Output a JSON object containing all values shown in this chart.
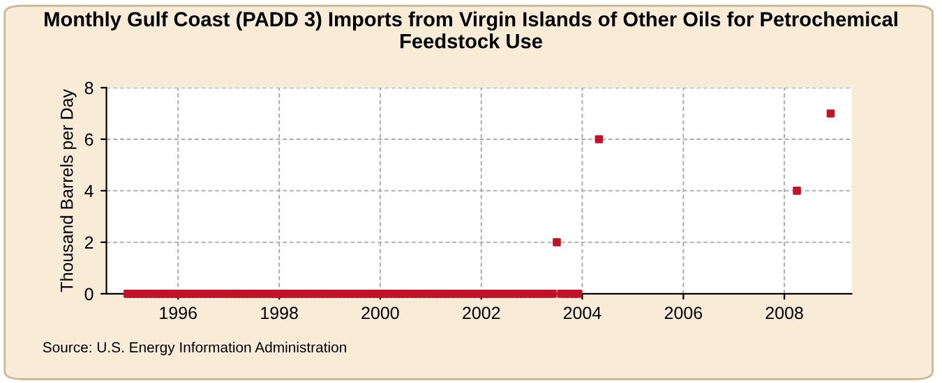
{
  "chart_data": {
    "type": "scatter",
    "title": "Monthly Gulf Coast (PADD 3) Imports from Virgin Islands of Other Oils for Petrochemical Feedstock Use",
    "ylabel": "Thousand Barrels per Day",
    "annotations": [
      "Source: U.S. Energy Information Administration"
    ],
    "x": [
      "1995-01",
      "1995-02",
      "1995-03",
      "1995-04",
      "1995-05",
      "1995-06",
      "1995-07",
      "1995-08",
      "1995-09",
      "1995-10",
      "1995-11",
      "1995-12",
      "1996-01",
      "1996-02",
      "1996-03",
      "1996-04",
      "1996-05",
      "1996-06",
      "1996-07",
      "1996-08",
      "1996-09",
      "1996-10",
      "1996-11",
      "1996-12",
      "1997-01",
      "1997-02",
      "1997-03",
      "1997-04",
      "1997-05",
      "1997-06",
      "1997-07",
      "1997-08",
      "1997-09",
      "1997-10",
      "1997-11",
      "1997-12",
      "1998-01",
      "1998-02",
      "1998-03",
      "1998-04",
      "1998-05",
      "1998-06",
      "1998-07",
      "1998-08",
      "1998-09",
      "1998-10",
      "1998-11",
      "1998-12",
      "1999-01",
      "1999-02",
      "1999-03",
      "1999-04",
      "1999-05",
      "1999-06",
      "1999-07",
      "1999-08",
      "1999-09",
      "1999-10",
      "1999-11",
      "1999-12",
      "2000-01",
      "2000-02",
      "2000-03",
      "2000-04",
      "2000-05",
      "2000-06",
      "2000-07",
      "2000-08",
      "2000-09",
      "2000-10",
      "2000-11",
      "2000-12",
      "2001-01",
      "2001-02",
      "2001-03",
      "2001-04",
      "2001-05",
      "2001-06",
      "2001-07",
      "2001-08",
      "2001-09",
      "2001-10",
      "2001-11",
      "2001-12",
      "2002-01",
      "2002-02",
      "2002-03",
      "2002-04",
      "2002-05",
      "2002-06",
      "2002-07",
      "2002-08",
      "2002-09",
      "2002-10",
      "2002-11",
      "2002-12",
      "2003-01",
      "2003-02",
      "2003-03",
      "2003-04",
      "2003-05",
      "2003-06",
      "2003-07",
      "2003-08",
      "2003-09",
      "2003-10",
      "2003-11",
      "2003-12",
      "2004-05",
      "2008-04",
      "2008-12"
    ],
    "series": [
      {
        "color": "#c0122a",
        "values": [
          0,
          0,
          0,
          0,
          0,
          0,
          0,
          0,
          0,
          0,
          0,
          0,
          0,
          0,
          0,
          0,
          0,
          0,
          0,
          0,
          0,
          0,
          0,
          0,
          0,
          0,
          0,
          0,
          0,
          0,
          0,
          0,
          0,
          0,
          0,
          0,
          0,
          0,
          0,
          0,
          0,
          0,
          0,
          0,
          0,
          0,
          0,
          0,
          0,
          0,
          0,
          0,
          0,
          0,
          0,
          0,
          0,
          0,
          0,
          0,
          0,
          0,
          0,
          0,
          0,
          0,
          0,
          0,
          0,
          0,
          0,
          0,
          0,
          0,
          0,
          0,
          0,
          0,
          0,
          0,
          0,
          0,
          0,
          0,
          0,
          0,
          0,
          0,
          0,
          0,
          0,
          0,
          0,
          0,
          0,
          0,
          0,
          0,
          0,
          0,
          0,
          0,
          2,
          0,
          0,
          0,
          0,
          0,
          6,
          4,
          7
        ]
      }
    ],
    "xlim": [
      "1994-08",
      "2009-05"
    ],
    "xticks": [
      "1996",
      "1998",
      "2000",
      "2002",
      "2004",
      "2006",
      "2008"
    ],
    "ylim": [
      0,
      8
    ],
    "yticks": [
      0,
      2,
      4,
      6,
      8
    ],
    "grid": true,
    "marker": "square",
    "legend": false
  }
}
